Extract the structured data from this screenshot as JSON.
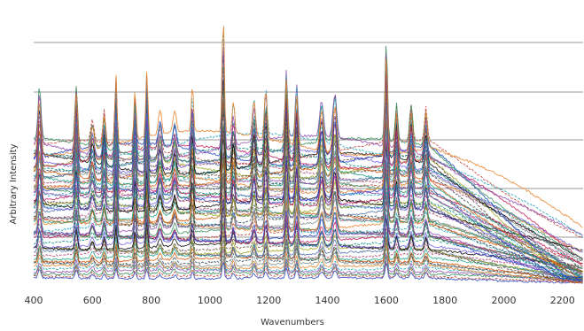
{
  "chart_data": {
    "type": "line",
    "xlabel": "Wavenumbers",
    "ylabel": "Arbitrary Intensity",
    "xlim": [
      400,
      2270
    ],
    "x_ticks": [
      "400",
      "600",
      "800",
      "1000",
      "1200",
      "1400",
      "1600",
      "1800",
      "2000",
      "2200"
    ],
    "y_ticks_shown": false,
    "grid": "horizontal",
    "grid_lines": 5,
    "legend": "none",
    "series_count": 60,
    "colors": [
      "#1f3fbf",
      "#c0392b",
      "#2e8b57",
      "#8e44ad",
      "#17a2b8",
      "#e67e22",
      "#7f8c8d",
      "#2c3e50",
      "#d35400",
      "#16a085",
      "#b03a6e",
      "#4a6fa5",
      "#9aa31b",
      "#5d4037",
      "#000000",
      "#6c5ce7",
      "#00897b",
      "#c2185b"
    ],
    "peaks": [
      {
        "x": 420,
        "height": 0.42,
        "width": 7
      },
      {
        "x": 545,
        "height": 0.48,
        "width": 6
      },
      {
        "x": 600,
        "height": 0.18,
        "width": 8
      },
      {
        "x": 640,
        "height": 0.26,
        "width": 6
      },
      {
        "x": 680,
        "height": 0.55,
        "width": 5
      },
      {
        "x": 745,
        "height": 0.42,
        "width": 5
      },
      {
        "x": 785,
        "height": 0.55,
        "width": 5
      },
      {
        "x": 830,
        "height": 0.2,
        "width": 8
      },
      {
        "x": 880,
        "height": 0.18,
        "width": 8
      },
      {
        "x": 940,
        "height": 0.38,
        "width": 5
      },
      {
        "x": 1045,
        "height": 0.95,
        "width": 5
      },
      {
        "x": 1080,
        "height": 0.25,
        "width": 6
      },
      {
        "x": 1150,
        "height": 0.28,
        "width": 7
      },
      {
        "x": 1190,
        "height": 0.4,
        "width": 6
      },
      {
        "x": 1260,
        "height": 0.52,
        "width": 6
      },
      {
        "x": 1295,
        "height": 0.42,
        "width": 6
      },
      {
        "x": 1380,
        "height": 0.3,
        "width": 9
      },
      {
        "x": 1425,
        "height": 0.36,
        "width": 9
      },
      {
        "x": 1600,
        "height": 0.78,
        "width": 6
      },
      {
        "x": 1635,
        "height": 0.3,
        "width": 6
      },
      {
        "x": 1685,
        "height": 0.32,
        "width": 7
      },
      {
        "x": 1735,
        "height": 0.27,
        "width": 7
      }
    ]
  }
}
